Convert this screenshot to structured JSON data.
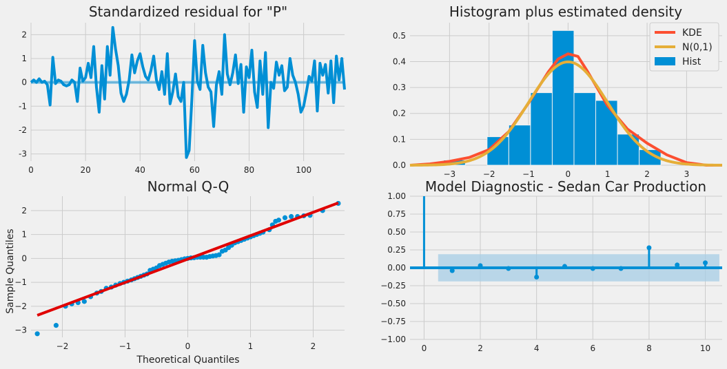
{
  "chart_data": [
    {
      "type": "line",
      "title": "Standardized residual for \"P\"",
      "xlim": [
        0,
        115
      ],
      "ylim": [
        -3.3,
        2.5
      ],
      "xticks": [
        0,
        20,
        40,
        60,
        80,
        100
      ],
      "yticks": [
        -3,
        -2,
        -1,
        0,
        1,
        2
      ],
      "grid": true,
      "colors": {
        "line": "#008fd5"
      },
      "series": [
        {
          "values": [
            0.0,
            0.1,
            0.0,
            0.15,
            0.0,
            0.05,
            -0.1,
            -0.95,
            1.05,
            -0.05,
            0.1,
            0.05,
            -0.1,
            -0.15,
            -0.1,
            0.1,
            0.0,
            -0.8,
            0.6,
            0.05,
            0.2,
            0.8,
            0.2,
            1.5,
            -0.2,
            -1.25,
            0.7,
            -0.7,
            1.5,
            0.3,
            2.3,
            1.4,
            0.7,
            -0.45,
            -0.8,
            -0.5,
            0.1,
            1.15,
            0.4,
            0.9,
            1.2,
            0.65,
            0.25,
            0.1,
            0.5,
            1.1,
            0.1,
            -0.3,
            0.45,
            -0.5,
            1.2,
            -0.9,
            -0.4,
            0.35,
            -0.6,
            -0.8,
            0.0,
            -3.15,
            -2.85,
            -0.7,
            1.75,
            0.05,
            -0.3,
            1.55,
            0.4,
            -0.2,
            -0.4,
            -1.85,
            -0.1,
            0.45,
            -0.5,
            2.0,
            0.35,
            -0.1,
            0.4,
            1.15,
            -0.05,
            0.75,
            -1.25,
            0.65,
            0.2,
            1.35,
            -0.4,
            -1.05,
            0.9,
            -0.5,
            1.25,
            -1.9,
            0.0,
            -0.25,
            0.85,
            0.3,
            0.7,
            -0.35,
            -0.2,
            1.0,
            0.3,
            0.0,
            -0.5,
            -1.25,
            -1.0,
            -0.4,
            0.25,
            0.05,
            0.9,
            -1.2,
            0.8,
            0.3,
            0.75,
            -0.45,
            0.9,
            -0.85,
            1.1,
            0.1,
            1.0,
            -0.3
          ]
        }
      ]
    },
    {
      "type": "bar",
      "title": "Histogram plus estimated density",
      "xlim": [
        -4.0,
        3.9
      ],
      "ylim": [
        0,
        0.55
      ],
      "xticks": [
        -3,
        -2,
        -1,
        0,
        1,
        2,
        3
      ],
      "yticks": [
        0.0,
        0.1,
        0.2,
        0.3,
        0.4,
        0.5
      ],
      "grid": true,
      "legend": {
        "position": "top-right",
        "entries": [
          "KDE",
          "N(0,1)",
          "Hist"
        ]
      },
      "colors": {
        "hist": "#008fd5",
        "kde": "#fc4f30",
        "normal": "#e5ae38"
      },
      "bin_edges": [
        -3.15,
        -2.6,
        -2.05,
        -1.5,
        -0.95,
        -0.4,
        0.15,
        0.7,
        1.25,
        1.8,
        2.35
      ],
      "values": [
        0.02,
        0.0,
        0.11,
        0.155,
        0.28,
        0.52,
        0.28,
        0.25,
        0.12,
        0.06
      ],
      "kde": {
        "x": [
          -4.0,
          -3.5,
          -3.0,
          -2.5,
          -2.0,
          -1.5,
          -1.0,
          -0.5,
          -0.25,
          0.0,
          0.25,
          0.5,
          1.0,
          1.5,
          2.0,
          2.5,
          3.0,
          3.5,
          3.9
        ],
        "y": [
          0.0,
          0.005,
          0.015,
          0.03,
          0.06,
          0.13,
          0.24,
          0.36,
          0.41,
          0.43,
          0.42,
          0.36,
          0.23,
          0.14,
          0.085,
          0.04,
          0.01,
          0.0,
          0.0
        ]
      }
    },
    {
      "type": "scatter",
      "title": "Normal Q-Q",
      "xlabel": "Theoretical Quantiles",
      "ylabel": "Sample Quantiles",
      "xlim": [
        -2.5,
        2.5
      ],
      "ylim": [
        -3.3,
        2.6
      ],
      "xticks": [
        -2,
        -1,
        0,
        1,
        2
      ],
      "yticks": [
        -3,
        -2,
        -1,
        0,
        1,
        2
      ],
      "grid": true,
      "colors": {
        "points": "#008fd5",
        "line": "#e00000"
      },
      "line_points": [
        [
          -2.4,
          -2.38
        ],
        [
          2.4,
          2.32
        ]
      ],
      "points": [
        [
          -2.4,
          -3.15
        ],
        [
          -2.1,
          -2.8
        ],
        [
          -1.95,
          -2.0
        ],
        [
          -1.85,
          -1.9
        ],
        [
          -1.75,
          -1.85
        ],
        [
          -1.65,
          -1.8
        ],
        [
          -1.55,
          -1.6
        ],
        [
          -1.45,
          -1.45
        ],
        [
          -1.38,
          -1.38
        ],
        [
          -1.3,
          -1.25
        ],
        [
          -1.22,
          -1.2
        ],
        [
          -1.15,
          -1.12
        ],
        [
          -1.08,
          -1.05
        ],
        [
          -1.02,
          -1.0
        ],
        [
          -0.96,
          -0.95
        ],
        [
          -0.9,
          -0.9
        ],
        [
          -0.85,
          -0.85
        ],
        [
          -0.8,
          -0.8
        ],
        [
          -0.75,
          -0.75
        ],
        [
          -0.7,
          -0.7
        ],
        [
          -0.65,
          -0.65
        ],
        [
          -0.6,
          -0.5
        ],
        [
          -0.55,
          -0.45
        ],
        [
          -0.5,
          -0.4
        ],
        [
          -0.45,
          -0.3
        ],
        [
          -0.4,
          -0.25
        ],
        [
          -0.35,
          -0.2
        ],
        [
          -0.3,
          -0.15
        ],
        [
          -0.25,
          -0.12
        ],
        [
          -0.2,
          -0.1
        ],
        [
          -0.15,
          -0.08
        ],
        [
          -0.1,
          -0.05
        ],
        [
          -0.05,
          -0.02
        ],
        [
          0.0,
          0.0
        ],
        [
          0.05,
          0.02
        ],
        [
          0.1,
          0.03
        ],
        [
          0.15,
          0.05
        ],
        [
          0.2,
          0.05
        ],
        [
          0.25,
          0.05
        ],
        [
          0.3,
          0.05
        ],
        [
          0.35,
          0.08
        ],
        [
          0.4,
          0.1
        ],
        [
          0.45,
          0.12
        ],
        [
          0.5,
          0.15
        ],
        [
          0.55,
          0.3
        ],
        [
          0.6,
          0.35
        ],
        [
          0.65,
          0.45
        ],
        [
          0.7,
          0.55
        ],
        [
          0.75,
          0.65
        ],
        [
          0.8,
          0.7
        ],
        [
          0.85,
          0.75
        ],
        [
          0.9,
          0.8
        ],
        [
          0.95,
          0.85
        ],
        [
          1.0,
          0.9
        ],
        [
          1.05,
          0.95
        ],
        [
          1.1,
          1.0
        ],
        [
          1.15,
          1.05
        ],
        [
          1.2,
          1.1
        ],
        [
          1.3,
          1.2
        ],
        [
          1.35,
          1.4
        ],
        [
          1.4,
          1.55
        ],
        [
          1.45,
          1.6
        ],
        [
          1.55,
          1.7
        ],
        [
          1.65,
          1.75
        ],
        [
          1.75,
          1.75
        ],
        [
          1.85,
          1.78
        ],
        [
          1.95,
          1.8
        ],
        [
          2.15,
          2.0
        ],
        [
          2.4,
          2.3
        ]
      ]
    },
    {
      "type": "bar",
      "title": "Model Diagnostic - Sedan Car Production",
      "xlim": [
        -0.5,
        10.6
      ],
      "ylim": [
        -1.0,
        1.0
      ],
      "xticks": [
        0,
        2,
        4,
        6,
        8,
        10
      ],
      "yticks": [
        -1.0,
        -0.75,
        -0.5,
        -0.25,
        0.0,
        0.25,
        0.5,
        0.75,
        1.0
      ],
      "ytick_labels": [
        "−1.00",
        "−0.75",
        "−0.50",
        "−0.25",
        "0.00",
        "0.25",
        "0.50",
        "0.75",
        "1.00"
      ],
      "grid": true,
      "colors": {
        "stem": "#008fd5",
        "band": "#a7cde6"
      },
      "confidence_band": {
        "x_range": [
          0.5,
          10.5
        ],
        "y_range": [
          -0.19,
          0.19
        ]
      },
      "lags": [
        0,
        1,
        2,
        3,
        4,
        5,
        6,
        7,
        8,
        9,
        10
      ],
      "values": [
        1.0,
        -0.04,
        0.03,
        -0.01,
        -0.13,
        0.02,
        -0.01,
        -0.01,
        0.28,
        0.04,
        0.07
      ]
    }
  ]
}
